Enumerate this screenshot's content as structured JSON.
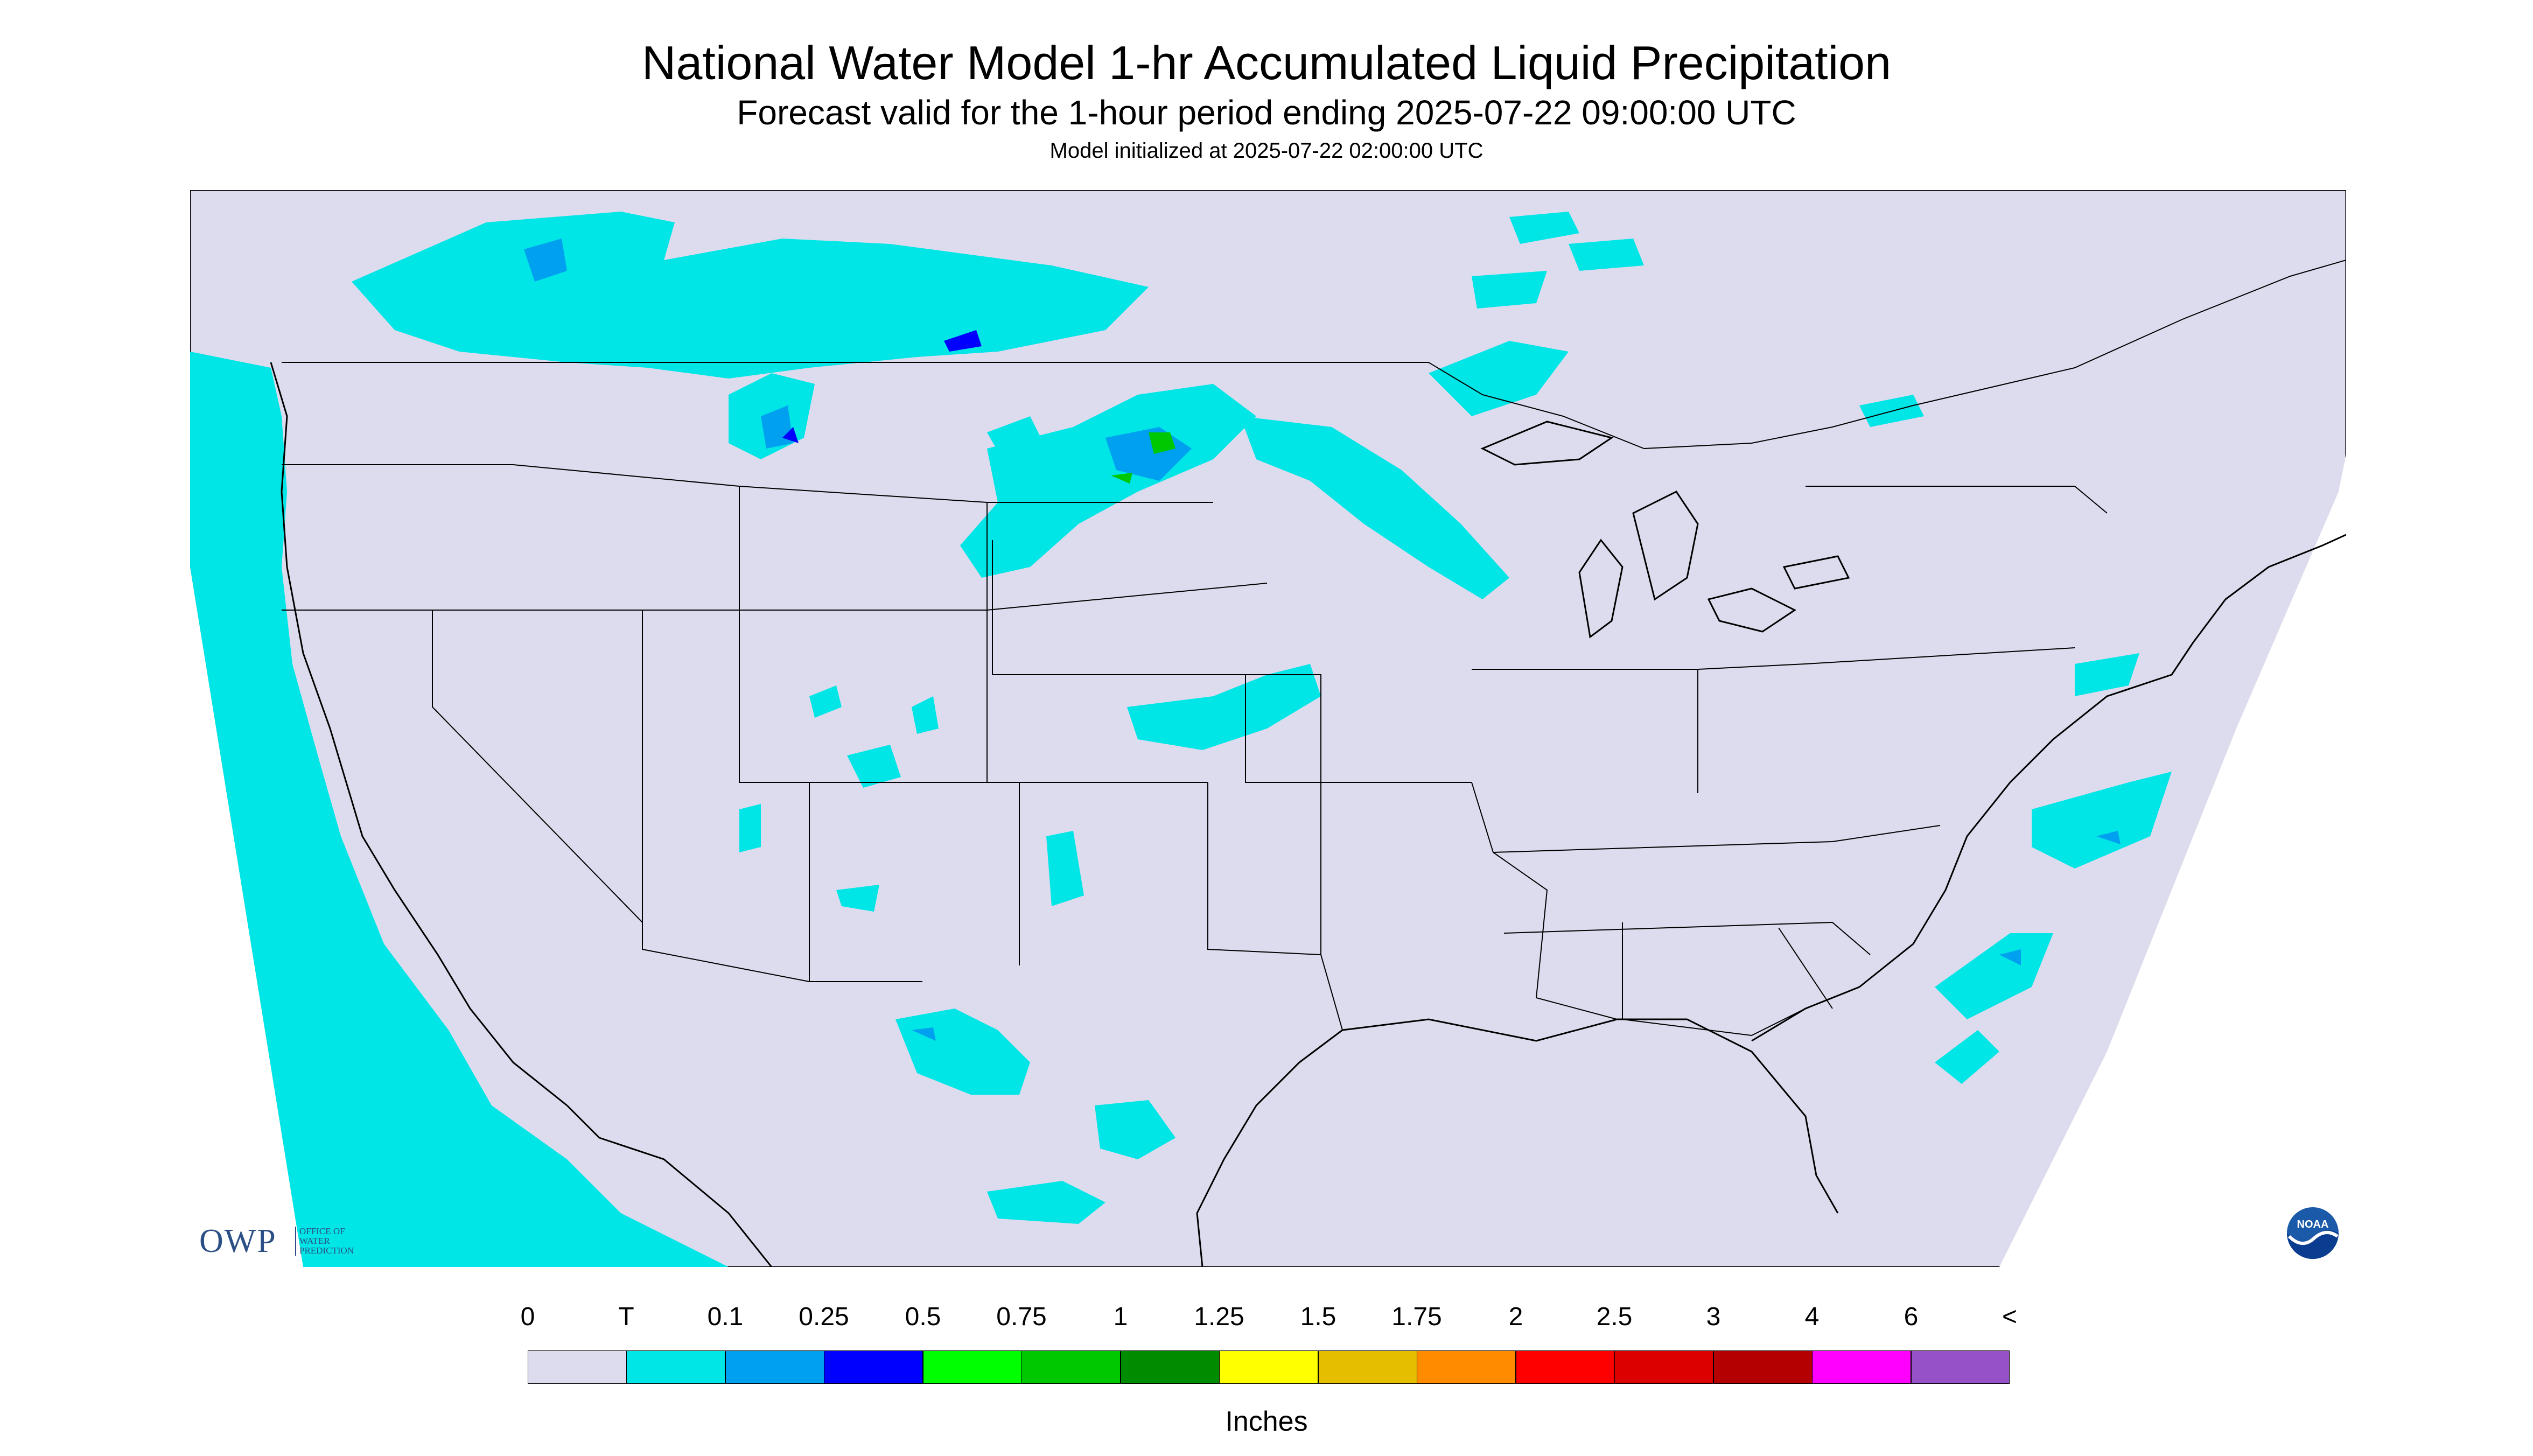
{
  "header": {
    "title": "National Water Model 1-hr Accumulated Liquid Precipitation",
    "subtitle": "Forecast valid for the 1-hour period ending 2025-07-22 09:00:00 UTC",
    "init_line": "Model initialized at 2025-07-22 02:00:00 UTC"
  },
  "map": {
    "background_color": "#dcdcee",
    "land_water_color": "#dcdcee",
    "outside_domain_color": "#ffffff",
    "boundary_color": "#000000"
  },
  "legend": {
    "labels": [
      "0",
      "T",
      "0.1",
      "0.25",
      "0.5",
      "0.75",
      "1",
      "1.25",
      "1.5",
      "1.75",
      "2",
      "2.5",
      "3",
      "4",
      "6",
      "<"
    ],
    "colors": [
      "#dcdcee",
      "#00e5e5",
      "#00a0f0",
      "#0000ff",
      "#00ff00",
      "#00c800",
      "#008c00",
      "#ffff00",
      "#e6be00",
      "#ff8c00",
      "#ff0000",
      "#dc0000",
      "#b40000",
      "#ff00ff",
      "#9650c8"
    ],
    "units": "Inches"
  },
  "logos": {
    "owp_letters": "OWP",
    "owp_text": [
      "OFFICE OF",
      "WATER",
      "PREDICTION"
    ],
    "noaa_text": "NOAA"
  }
}
